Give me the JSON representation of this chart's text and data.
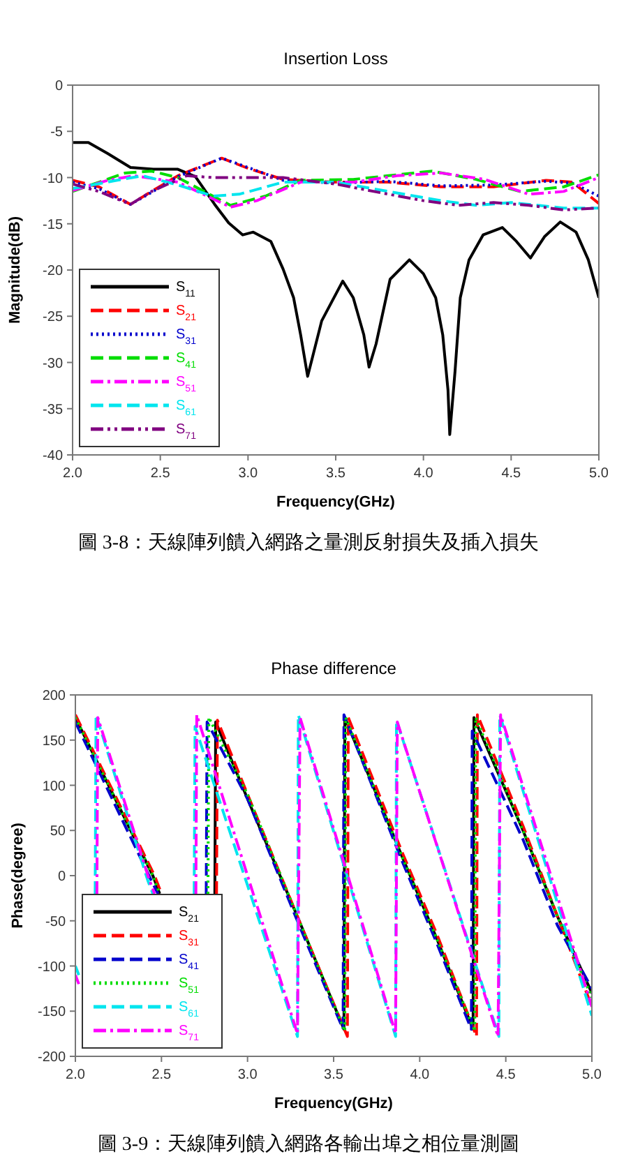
{
  "chart_data": [
    {
      "type": "line",
      "title": "Insertion Loss",
      "xlabel": "Frequency(GHz)",
      "ylabel": "Magnitude(dB)",
      "xlim": [
        2,
        5
      ],
      "xticks": [
        {
          "value": 2,
          "label": "2.0"
        },
        {
          "value": 2.5,
          "label": "2.5"
        },
        {
          "value": 3,
          "label": "3.0"
        },
        {
          "value": 3.5,
          "label": "3.5"
        },
        {
          "value": 4,
          "label": "4.0"
        },
        {
          "value": 4.5,
          "label": "4.5"
        },
        {
          "value": 5,
          "label": "5.0"
        }
      ],
      "ylim": [
        -40,
        0
      ],
      "yticks": [
        -40,
        -35,
        -30,
        -25,
        -20,
        -15,
        -10,
        -5,
        0
      ],
      "legend": "bottom left",
      "grid": false,
      "annotations": [
        "圖 3-8：天線陣列饋入網路之量測反射損失及插入損失"
      ],
      "series": [
        {
          "name": "S$_{11}$",
          "color": "#000000",
          "line_style": "solid",
          "x": [
            2.0,
            2.09,
            2.2,
            2.33,
            2.46,
            2.6,
            2.7,
            2.81,
            2.89,
            2.97,
            3.03,
            3.13,
            3.2,
            3.26,
            3.3,
            3.34,
            3.36,
            3.42,
            3.54,
            3.6,
            3.66,
            3.69,
            3.73,
            3.81,
            3.92,
            4.0,
            4.07,
            4.11,
            4.14,
            4.15,
            4.18,
            4.21,
            4.26,
            4.34,
            4.45,
            4.53,
            4.61,
            4.69,
            4.78,
            4.87,
            4.94,
            5.0
          ],
          "values": [
            -6.2,
            -6.2,
            -7.4,
            -8.9,
            -9.1,
            -9.1,
            -9.9,
            -12.9,
            -14.9,
            -16.2,
            -15.9,
            -16.9,
            -19.9,
            -23,
            -27,
            -31.5,
            -30,
            -25.5,
            -21.2,
            -23,
            -27,
            -30.5,
            -28,
            -21,
            -18.9,
            -20.4,
            -23,
            -27,
            -33,
            -37.8,
            -31,
            -23,
            -18.9,
            -16.2,
            -15.4,
            -16.9,
            -18.7,
            -16.4,
            -14.8,
            -15.9,
            -18.9,
            -23
          ]
        },
        {
          "name": "S$_{21}$",
          "color": "#ff0000",
          "line_style": "dashed",
          "x": [
            2.0,
            2.15,
            2.33,
            2.45,
            2.6,
            2.85,
            3.0,
            3.2,
            3.5,
            3.8,
            4.1,
            4.4,
            4.7,
            4.85,
            5.0
          ],
          "values": [
            -10.3,
            -11,
            -12.9,
            -11.5,
            -9.8,
            -7.9,
            -9,
            -10.2,
            -10.5,
            -10.5,
            -11,
            -11,
            -10.3,
            -10.5,
            -12.8
          ]
        },
        {
          "name": "S$_{31}$",
          "color": "#0000cc",
          "line_style": "dotted",
          "x": [
            2.0,
            2.15,
            2.33,
            2.45,
            2.6,
            2.85,
            3.0,
            3.2,
            3.5,
            3.8,
            4.1,
            4.4,
            4.7,
            4.85,
            5.0
          ],
          "values": [
            -10.5,
            -11.2,
            -12.9,
            -11.6,
            -9.9,
            -7.9,
            -8.9,
            -10.3,
            -10.6,
            -10.4,
            -10.9,
            -10.8,
            -10.4,
            -10.6,
            -12
          ]
        },
        {
          "name": "S$_{41}$",
          "color": "#00dd00",
          "line_style": "dashed",
          "x": [
            2.0,
            2.3,
            2.45,
            2.6,
            2.8,
            2.9,
            3.1,
            3.3,
            3.6,
            3.8,
            4.05,
            4.3,
            4.55,
            4.8,
            5.0
          ],
          "values": [
            -11.5,
            -9.5,
            -9.3,
            -10,
            -12,
            -13,
            -12,
            -10.3,
            -10.2,
            -9.8,
            -9.3,
            -10.2,
            -11.5,
            -11,
            -9.7
          ]
        },
        {
          "name": "S$_{51}$",
          "color": "#ff00ff",
          "line_style": "dashdot",
          "x": [
            2.0,
            2.2,
            2.35,
            2.6,
            2.9,
            3.05,
            3.3,
            3.6,
            3.85,
            4.1,
            4.35,
            4.6,
            4.8,
            5.0
          ],
          "values": [
            -11.4,
            -10.3,
            -9.8,
            -10.5,
            -13.2,
            -12.5,
            -10.5,
            -10.5,
            -9.8,
            -9.5,
            -10.2,
            -11.8,
            -11.5,
            -10
          ]
        },
        {
          "name": "S$_{61}$",
          "color": "#00e5ee",
          "line_style": "dashed",
          "x": [
            2.0,
            2.25,
            2.4,
            2.6,
            2.8,
            2.95,
            3.2,
            3.5,
            3.8,
            4.1,
            4.3,
            4.5,
            4.8,
            5.0
          ],
          "values": [
            -11.2,
            -10.3,
            -9.8,
            -10.8,
            -12,
            -11.8,
            -10.5,
            -10.5,
            -11.5,
            -12.5,
            -13,
            -12.7,
            -13.3,
            -13.3
          ]
        },
        {
          "name": "S$_{71}$",
          "color": "#800080",
          "line_style": "dashdotdot",
          "x": [
            2.0,
            2.15,
            2.33,
            2.45,
            2.65,
            2.8,
            3.2,
            3.5,
            3.8,
            4.0,
            4.2,
            4.4,
            4.6,
            4.8,
            5.0
          ],
          "values": [
            -10.7,
            -11.5,
            -12.9,
            -11.5,
            -9.8,
            -10,
            -10,
            -10.7,
            -11.8,
            -12.5,
            -13,
            -12.7,
            -13,
            -13.5,
            -13.3
          ]
        }
      ]
    },
    {
      "type": "line",
      "title": "Phase difference",
      "xlabel": "Frequency(GHz)",
      "ylabel": "Phase(degree)",
      "xlim": [
        2,
        5
      ],
      "xticks": [
        {
          "value": 2,
          "label": "2.0"
        },
        {
          "value": 2.5,
          "label": "2.5"
        },
        {
          "value": 3,
          "label": "3.0"
        },
        {
          "value": 3.5,
          "label": "3.5"
        },
        {
          "value": 4,
          "label": "4.0"
        },
        {
          "value": 4.5,
          "label": "4.5"
        },
        {
          "value": 5,
          "label": "5.0"
        }
      ],
      "ylim": [
        -200,
        200
      ],
      "yticks": [
        -200,
        -150,
        -100,
        -50,
        0,
        50,
        100,
        150,
        200
      ],
      "legend": "bottom left",
      "grid": false,
      "annotations": [
        "圖 3-9：天線陣列饋入網路各輸出埠之相位量測圖"
      ],
      "series": [
        {
          "name": "S$_{21}$",
          "color": "#000000",
          "line_style": "solid",
          "x": [
            2.0,
            2.45,
            2.49,
            null,
            2.81,
            2.815,
            3.0,
            3.3,
            3.56,
            3.565,
            3.9,
            4.1,
            4.31,
            4.315,
            4.6,
            4.8,
            5.0
          ],
          "values": [
            175,
            0,
            -20,
            null,
            -20,
            170,
            85,
            -50,
            -170,
            175,
            20,
            -70,
            -170,
            175,
            50,
            -45,
            -130
          ]
        },
        {
          "name": "S$_{31}$",
          "color": "#ff0000",
          "line_style": "dashed",
          "x": [
            2.0,
            2.46,
            2.5,
            null,
            2.82,
            2.825,
            3.0,
            3.3,
            3.58,
            3.585,
            3.9,
            4.1,
            4.33,
            4.335,
            4.6,
            4.8,
            5.0
          ],
          "values": [
            178,
            0,
            -20,
            null,
            -20,
            172,
            90,
            -50,
            -178,
            175,
            25,
            -65,
            -178,
            178,
            55,
            -45,
            -145
          ]
        },
        {
          "name": "S$_{41}$",
          "color": "#0000cc",
          "line_style": "dashed",
          "x": [
            2.0,
            2.44,
            2.48,
            null,
            2.76,
            2.765,
            3.0,
            3.3,
            3.555,
            3.56,
            3.9,
            4.1,
            4.3,
            4.305,
            4.6,
            4.8,
            5.0
          ],
          "values": [
            170,
            -5,
            -20,
            null,
            -20,
            170,
            85,
            -55,
            -170,
            178,
            15,
            -75,
            -170,
            160,
            40,
            -55,
            -125
          ]
        },
        {
          "name": "S$_{51}$",
          "color": "#00dd00",
          "line_style": "dotted",
          "x": [
            2.0,
            2.45,
            2.49,
            null,
            2.77,
            2.775,
            3.0,
            3.3,
            3.565,
            3.57,
            3.9,
            4.1,
            4.32,
            4.325,
            4.6,
            4.8,
            5.0
          ],
          "values": [
            175,
            0,
            -20,
            null,
            -20,
            175,
            90,
            -50,
            -172,
            175,
            20,
            -70,
            -172,
            175,
            50,
            -45,
            -135
          ]
        },
        {
          "name": "S$_{61}$",
          "color": "#00e5ee",
          "line_style": "dashed",
          "x": [
            2.0,
            2.02,
            null,
            2.115,
            2.12,
            2.42,
            2.45,
            null,
            2.69,
            2.695,
            3.29,
            3.295,
            3.86,
            3.865,
            4.46,
            4.465,
            5.0
          ],
          "values": [
            -100,
            -110,
            null,
            -20,
            178,
            -5,
            -20,
            null,
            -20,
            165,
            -178,
            178,
            -178,
            172,
            -178,
            178,
            -155
          ]
        },
        {
          "name": "S$_{71}$",
          "color": "#ff00ff",
          "line_style": "dashdot",
          "x": [
            2.0,
            2.02,
            null,
            2.125,
            2.13,
            2.43,
            2.46,
            null,
            2.7,
            2.705,
            3.29,
            3.305,
            3.86,
            3.87,
            4.455,
            4.47,
            5.0
          ],
          "values": [
            -110,
            -120,
            null,
            -20,
            175,
            -5,
            -20,
            null,
            -20,
            178,
            -175,
            175,
            -175,
            170,
            -178,
            178,
            -145
          ]
        }
      ]
    }
  ]
}
